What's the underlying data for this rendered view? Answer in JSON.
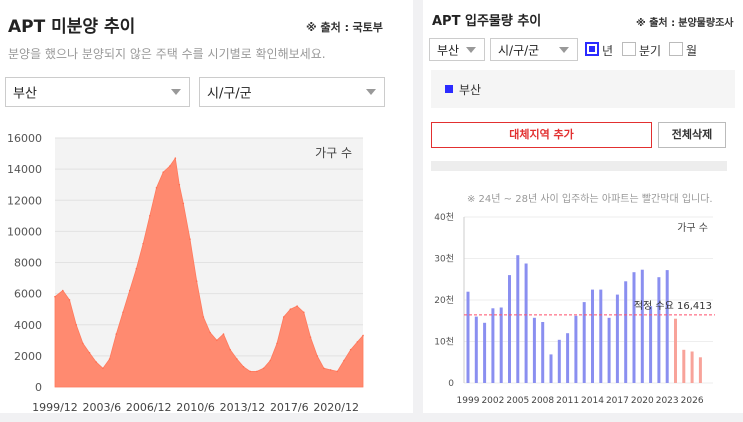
{
  "left": {
    "title": "APT 미분양 추이",
    "source_prefix": "※ 출처 :",
    "source_name": "국토부",
    "subtitle": "분양을 했으나 분양되지 않은 주택 수를 시기별로 확인해보세요.",
    "region_select": "부산",
    "district_select": "시/구/군"
  },
  "right": {
    "title": "APT 입주물량 추이",
    "source_prefix": "※ 출처 :",
    "source_name": "분양물량조사",
    "region_select": "부산",
    "district_select": "시/구/군",
    "period_options": [
      {
        "label": "년",
        "checked": true
      },
      {
        "label": "분기",
        "checked": false
      },
      {
        "label": "월",
        "checked": false
      }
    ],
    "legend_label": "부산",
    "legend_color": "#2b2bff",
    "add_region_label": "대체지역 추가",
    "delete_all_label": "전체삭제",
    "note": "※ 24년 ~ 28년 사이 입주하는 아파트는 빨간막대 입니다."
  },
  "chart_data": [
    {
      "type": "area",
      "title": "",
      "unit_label": "가구 수",
      "ylim": [
        0,
        16000
      ],
      "y_ticks": [
        0,
        2000,
        4000,
        6000,
        8000,
        10000,
        12000,
        14000,
        16000
      ],
      "x_tick_labels": [
        "1999/12",
        "2003/6",
        "2006/12",
        "2010/6",
        "2013/12",
        "2017/6",
        "2020/12"
      ],
      "x_start": "1999/12",
      "x_end": "2022/12",
      "color": "#ff8a70",
      "grid": true,
      "points": [
        [
          1999.92,
          5800
        ],
        [
          2000.5,
          6200
        ],
        [
          2001.0,
          5600
        ],
        [
          2001.5,
          4000
        ],
        [
          2002.0,
          2800
        ],
        [
          2002.5,
          2200
        ],
        [
          2003.0,
          1600
        ],
        [
          2003.5,
          1200
        ],
        [
          2004.0,
          1800
        ],
        [
          2004.5,
          3400
        ],
        [
          2005.0,
          4800
        ],
        [
          2005.5,
          6200
        ],
        [
          2006.0,
          7600
        ],
        [
          2006.5,
          9200
        ],
        [
          2007.0,
          11000
        ],
        [
          2007.5,
          12800
        ],
        [
          2008.0,
          13800
        ],
        [
          2008.5,
          14200
        ],
        [
          2008.9,
          14700
        ],
        [
          2009.2,
          13000
        ],
        [
          2009.5,
          11800
        ],
        [
          2010.0,
          9500
        ],
        [
          2010.5,
          6800
        ],
        [
          2011.0,
          4500
        ],
        [
          2011.5,
          3500
        ],
        [
          2012.0,
          3000
        ],
        [
          2012.5,
          3400
        ],
        [
          2013.0,
          2400
        ],
        [
          2013.5,
          1800
        ],
        [
          2014.0,
          1300
        ],
        [
          2014.5,
          1000
        ],
        [
          2015.0,
          1000
        ],
        [
          2015.5,
          1200
        ],
        [
          2016.0,
          1700
        ],
        [
          2016.5,
          2800
        ],
        [
          2017.0,
          4500
        ],
        [
          2017.5,
          5000
        ],
        [
          2018.0,
          5200
        ],
        [
          2018.5,
          4800
        ],
        [
          2019.0,
          3200
        ],
        [
          2019.5,
          2000
        ],
        [
          2020.0,
          1200
        ],
        [
          2020.5,
          1100
        ],
        [
          2021.0,
          1000
        ],
        [
          2021.5,
          1700
        ],
        [
          2022.0,
          2400
        ],
        [
          2022.5,
          2900
        ],
        [
          2022.92,
          3300
        ]
      ]
    },
    {
      "type": "bar",
      "title": "",
      "unit_label": "가구 수",
      "ylim": [
        0,
        40000
      ],
      "y_ticks": [
        0,
        10000,
        20000,
        30000,
        40000
      ],
      "y_tick_labels": [
        "0",
        "10천",
        "20천",
        "30천",
        "40천"
      ],
      "x_tick_labels": [
        "1999",
        "2002",
        "2005",
        "2008",
        "2011",
        "2014",
        "2017",
        "2020",
        "2023",
        "2026"
      ],
      "categories": [
        1999,
        2000,
        2001,
        2002,
        2003,
        2004,
        2005,
        2006,
        2007,
        2008,
        2009,
        2010,
        2011,
        2012,
        2013,
        2014,
        2015,
        2016,
        2017,
        2018,
        2019,
        2020,
        2021,
        2022,
        2023,
        2024,
        2025,
        2026,
        2027
      ],
      "values": [
        22000,
        16000,
        14500,
        18000,
        18200,
        26000,
        30800,
        28800,
        15700,
        14700,
        6900,
        10400,
        12000,
        16200,
        19500,
        22500,
        22500,
        15700,
        21300,
        24500,
        26700,
        27300,
        18500,
        25500,
        27200,
        15500,
        8000,
        7600,
        6200
      ],
      "future_from": 2024,
      "color_past": "#8a8ff0",
      "color_future": "#f8a39a",
      "reference_line": {
        "label": "적정 수요",
        "value": 16413,
        "value_label": "16,413",
        "color": "#ff4d6a"
      }
    }
  ]
}
